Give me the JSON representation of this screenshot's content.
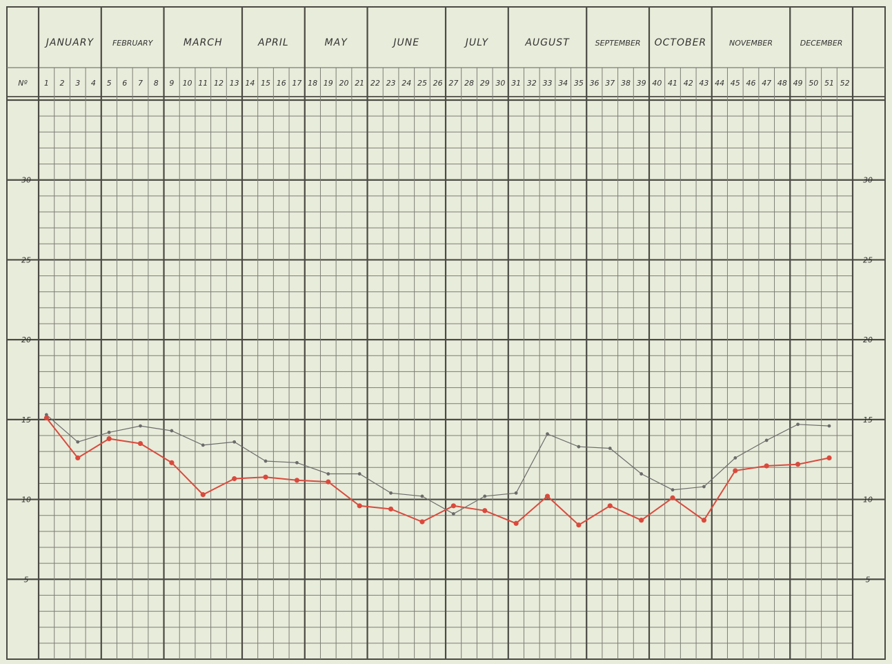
{
  "header": {
    "no_label": "Nº"
  },
  "chart_data": {
    "type": "line",
    "months": [
      {
        "label": "JANUARY",
        "weeks": [
          1,
          2,
          3,
          4
        ]
      },
      {
        "label": "FEBRUARY",
        "weeks": [
          5,
          6,
          7,
          8
        ]
      },
      {
        "label": "MARCH",
        "weeks": [
          9,
          10,
          11,
          12,
          13
        ]
      },
      {
        "label": "APRIL",
        "weeks": [
          14,
          15,
          16,
          17
        ]
      },
      {
        "label": "MAY",
        "weeks": [
          18,
          19,
          20,
          21
        ]
      },
      {
        "label": "JUNE",
        "weeks": [
          22,
          23,
          24,
          25,
          26
        ]
      },
      {
        "label": "JULY",
        "weeks": [
          27,
          28,
          29,
          30
        ]
      },
      {
        "label": "AUGUST",
        "weeks": [
          31,
          32,
          33,
          34,
          35
        ]
      },
      {
        "label": "SEPTEMBER",
        "weeks": [
          36,
          37,
          38,
          39
        ]
      },
      {
        "label": "OCTOBER",
        "weeks": [
          40,
          41,
          42,
          43
        ]
      },
      {
        "label": "NOVEMBER",
        "weeks": [
          44,
          45,
          46,
          47,
          48
        ]
      },
      {
        "label": "DECEMBER",
        "weeks": [
          49,
          50,
          51,
          52
        ]
      }
    ],
    "y_ticks": [
      5,
      10,
      15,
      20,
      25,
      30
    ],
    "ylim": [
      0,
      35
    ],
    "grid": true,
    "series": [
      {
        "color": "#d94a3d",
        "points": [
          [
            1,
            15.1
          ],
          [
            3,
            12.6
          ],
          [
            5,
            13.8
          ],
          [
            7,
            13.5
          ],
          [
            9,
            12.3
          ],
          [
            11,
            10.3
          ],
          [
            13,
            11.3
          ],
          [
            15,
            11.4
          ],
          [
            17,
            11.2
          ],
          [
            19,
            11.1
          ],
          [
            21,
            9.6
          ],
          [
            23,
            9.4
          ],
          [
            25,
            8.6
          ],
          [
            27,
            9.6
          ],
          [
            29,
            9.3
          ],
          [
            31,
            8.5
          ],
          [
            33,
            10.2
          ],
          [
            35,
            8.4
          ],
          [
            37,
            9.6
          ],
          [
            39,
            8.7
          ],
          [
            41,
            10.1
          ],
          [
            43,
            8.7
          ],
          [
            45,
            11.8
          ],
          [
            47,
            12.1
          ],
          [
            49,
            12.2
          ],
          [
            51,
            12.6
          ]
        ]
      },
      {
        "color": "#6b6b6b",
        "points": [
          [
            1,
            15.3
          ],
          [
            3,
            13.6
          ],
          [
            5,
            14.2
          ],
          [
            7,
            14.6
          ],
          [
            9,
            14.3
          ],
          [
            11,
            13.4
          ],
          [
            13,
            13.6
          ],
          [
            15,
            12.4
          ],
          [
            17,
            12.3
          ],
          [
            19,
            11.6
          ],
          [
            21,
            11.6
          ],
          [
            23,
            10.4
          ],
          [
            25,
            10.2
          ],
          [
            27,
            9.1
          ],
          [
            29,
            10.2
          ],
          [
            31,
            10.4
          ],
          [
            33,
            14.1
          ],
          [
            35,
            13.3
          ],
          [
            37,
            13.2
          ],
          [
            39,
            11.6
          ],
          [
            41,
            10.6
          ],
          [
            43,
            10.8
          ],
          [
            45,
            12.6
          ],
          [
            47,
            13.7
          ],
          [
            49,
            14.7
          ],
          [
            51,
            14.6
          ]
        ]
      }
    ]
  }
}
